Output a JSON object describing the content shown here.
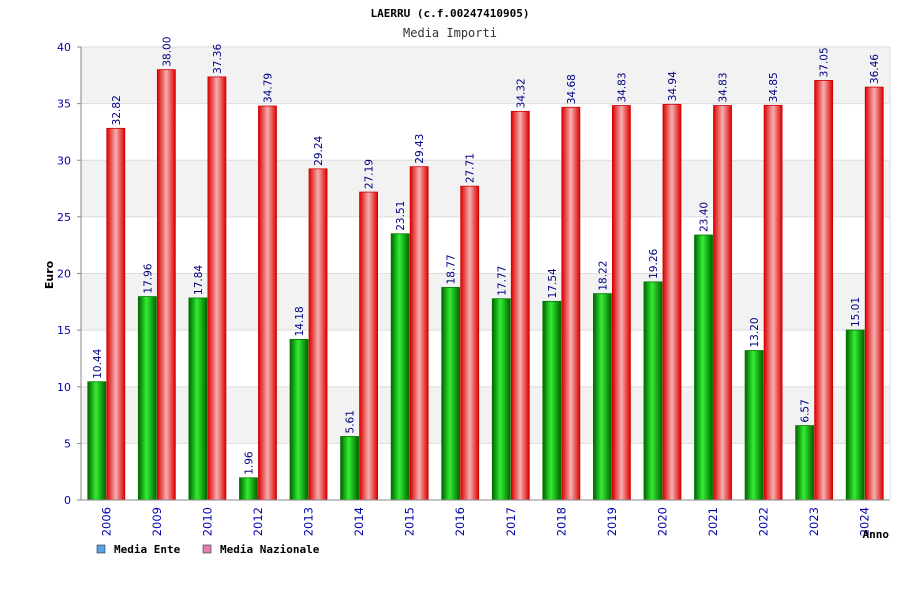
{
  "chart_data": {
    "type": "bar",
    "title": "LAERRU (c.f.00247410905)",
    "subtitle": "Media Importi",
    "xlabel": "Anno",
    "ylabel": "Euro",
    "ylim": [
      0,
      40
    ],
    "yticks": [
      0,
      5,
      10,
      15,
      20,
      25,
      30,
      35,
      40
    ],
    "grid": true,
    "legend_position": "bottom-left",
    "categories": [
      "2006",
      "2009",
      "2010",
      "2012",
      "2013",
      "2014",
      "2015",
      "2016",
      "2017",
      "2018",
      "2019",
      "2020",
      "2021",
      "2022",
      "2023",
      "2024"
    ],
    "series": [
      {
        "name": "Media Ente",
        "color": "#00aa00",
        "legend_color": "#5aa0e6",
        "values": [
          10.44,
          17.96,
          17.84,
          1.96,
          14.18,
          5.61,
          23.51,
          18.77,
          17.77,
          17.54,
          18.22,
          19.26,
          23.4,
          13.2,
          6.57,
          15.01
        ],
        "labels": [
          "10.44",
          "17.96",
          "17.84",
          "1.96",
          "14.18",
          "5.61",
          "23.51",
          "18.77",
          "17.77",
          "17.54",
          "18.22",
          "19.26",
          "23.40",
          "13.20",
          "6.57",
          "15.01"
        ]
      },
      {
        "name": "Media Nazionale",
        "color": "#ee0000",
        "legend_color": "#e080b0",
        "values": [
          32.82,
          38.0,
          37.36,
          34.79,
          29.24,
          27.19,
          29.43,
          27.71,
          34.32,
          34.68,
          34.83,
          34.94,
          34.83,
          34.85,
          37.05,
          36.46
        ],
        "labels": [
          "32.82",
          "38.00",
          "37.36",
          "34.79",
          "29.24",
          "27.19",
          "29.43",
          "27.71",
          "34.32",
          "34.68",
          "34.83",
          "34.94",
          "34.83",
          "34.85",
          "37.05",
          "36.46"
        ]
      }
    ]
  }
}
